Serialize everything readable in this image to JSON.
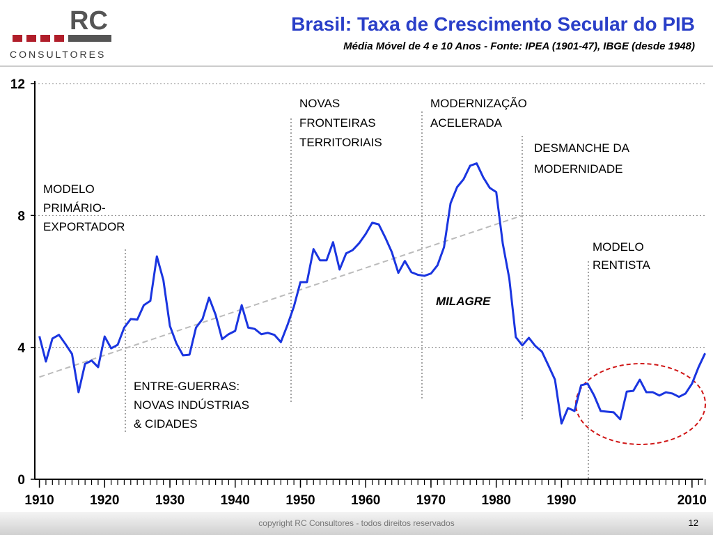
{
  "header": {
    "logo": "RC",
    "logo_sub": "CONSULTORES"
  },
  "footer": {
    "copyright": "copyright RC Consultores - todos direitos reservados",
    "page": "12"
  },
  "chart_data": {
    "type": "line",
    "title": "Brasil: Taxa de Crescimento Secular do PIB",
    "subtitle": "Média Móvel de 4 e 10 Anos - Fonte: IPEA (1901-47), IBGE (desde 1948)",
    "x": [
      1910,
      1911,
      1912,
      1913,
      1914,
      1915,
      1916,
      1917,
      1918,
      1919,
      1920,
      1921,
      1922,
      1923,
      1924,
      1925,
      1926,
      1927,
      1928,
      1929,
      1930,
      1931,
      1932,
      1933,
      1934,
      1935,
      1936,
      1937,
      1938,
      1939,
      1940,
      1941,
      1942,
      1943,
      1944,
      1945,
      1946,
      1947,
      1948,
      1949,
      1950,
      1951,
      1952,
      1953,
      1954,
      1955,
      1956,
      1957,
      1958,
      1959,
      1960,
      1961,
      1962,
      1963,
      1964,
      1965,
      1966,
      1967,
      1968,
      1969,
      1970,
      1971,
      1972,
      1973,
      1974,
      1975,
      1976,
      1977,
      1978,
      1979,
      1980,
      1981,
      1982,
      1983,
      1984,
      1985,
      1986,
      1987,
      1988,
      1989,
      1990,
      1991,
      1992,
      1993,
      1994,
      1995,
      1996,
      1997,
      1998,
      1999,
      2000,
      2001,
      2002,
      2003,
      2004,
      2005,
      2006,
      2007,
      2008,
      2009,
      2010,
      2011,
      2012
    ],
    "series": [
      {
        "color": "#1a35e0",
        "values": [
          4.34,
          3.57,
          4.27,
          4.38,
          4.1,
          3.8,
          2.64,
          3.5,
          3.6,
          3.4,
          4.33,
          3.97,
          4.08,
          4.6,
          4.86,
          4.84,
          5.28,
          5.41,
          6.76,
          6.04,
          4.65,
          4.12,
          3.76,
          3.78,
          4.6,
          4.86,
          5.51,
          4.99,
          4.25,
          4.4,
          4.5,
          5.28,
          4.6,
          4.56,
          4.4,
          4.44,
          4.38,
          4.16,
          4.67,
          5.24,
          5.98,
          5.98,
          6.98,
          6.64,
          6.64,
          7.19,
          6.36,
          6.85,
          6.95,
          7.16,
          7.44,
          7.78,
          7.73,
          7.33,
          6.89,
          6.26,
          6.62,
          6.28,
          6.2,
          6.17,
          6.24,
          6.49,
          7.04,
          8.37,
          8.86,
          9.1,
          9.51,
          9.58,
          9.16,
          8.84,
          8.71,
          7.15,
          6.09,
          4.31,
          4.06,
          4.29,
          4.04,
          3.87,
          3.45,
          3.02,
          1.69,
          2.16,
          2.07,
          2.85,
          2.9,
          2.54,
          2.07,
          2.05,
          2.03,
          1.82,
          2.66,
          2.68,
          3.02,
          2.64,
          2.64,
          2.54,
          2.64,
          2.6,
          2.5,
          2.6,
          2.9,
          3.4,
          3.82
        ]
      }
    ],
    "trend": {
      "color": "#bbbbbb",
      "x": [
        1910,
        1984
      ],
      "values": [
        3.1,
        8.0
      ]
    },
    "xlim": [
      1909.3,
      2013
    ],
    "xticks": [
      1910,
      1920,
      1930,
      1940,
      1950,
      1960,
      1970,
      1980,
      1990,
      2010
    ],
    "ylim": [
      0,
      12
    ],
    "yticks": [
      0,
      4,
      8,
      12
    ],
    "grid": true,
    "annotations": [
      {
        "lines": [
          "MODELO",
          "PRIMÁRIO-",
          "EXPORTADOR"
        ]
      },
      {
        "lines": [
          "ENTRE-GUERRAS:",
          "NOVAS INDÚSTRIAS",
          "& CIDADES"
        ]
      },
      {
        "lines": [
          "NOVAS",
          "FRONTEIRAS",
          "TERRITORIAIS"
        ]
      },
      {
        "lines": [
          "MODERNIZAÇÃO",
          "ACELERADA"
        ]
      },
      {
        "lines": [
          "DESMANCHE DA",
          "MODERNIDADE"
        ]
      },
      {
        "lines": [
          "MODELO",
          "RENTISTA"
        ]
      },
      {
        "lines": [
          "MILAGRE"
        ]
      }
    ]
  }
}
